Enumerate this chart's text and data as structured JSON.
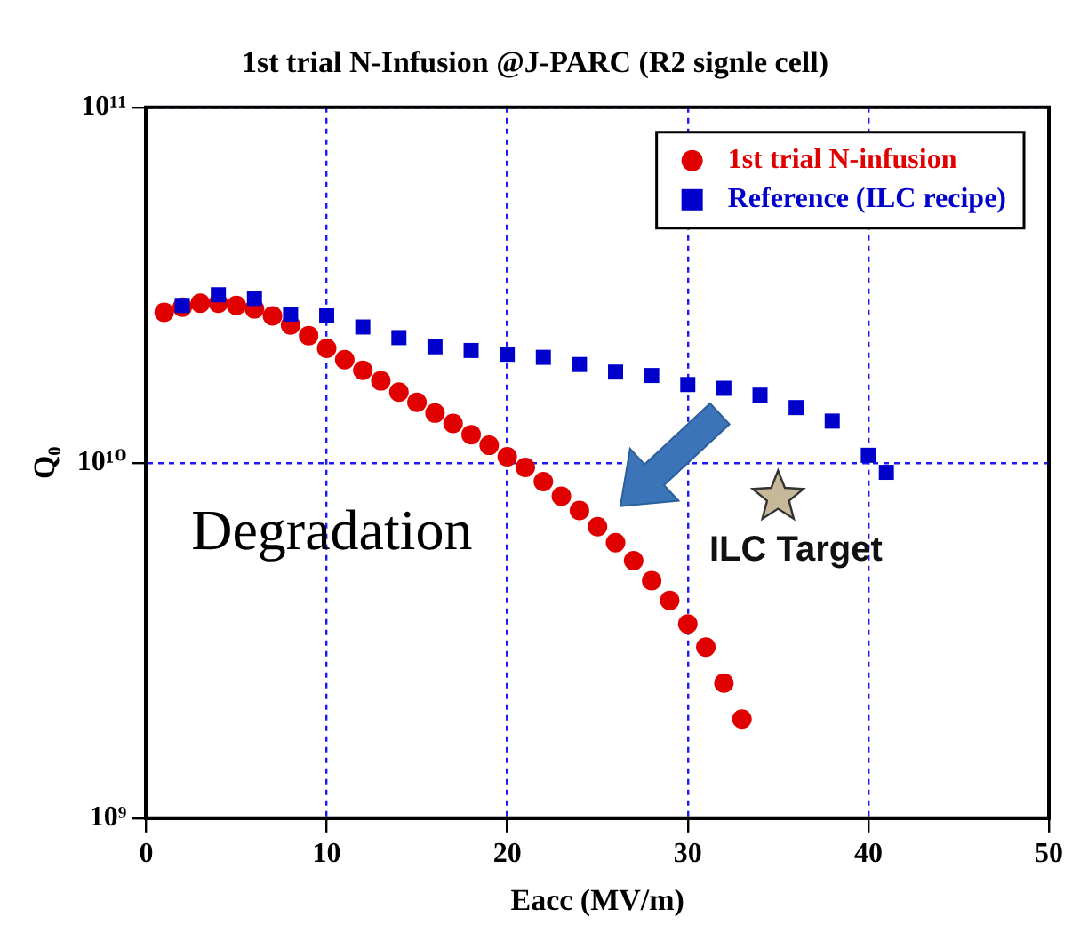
{
  "chart_data": {
    "type": "scatter",
    "title": "1st trial N-Infusion @J-PARC (R2 signle cell)",
    "xlabel": "Eacc (MV/m)",
    "ylabel": "Q₀",
    "log": "y",
    "xlim": [
      0,
      50
    ],
    "xticks": [
      0,
      10,
      20,
      30,
      40,
      50
    ],
    "ylim": [
      1000000000.0,
      100000000000.0
    ],
    "yticks": [
      {
        "value": 1000000000.0,
        "label": "10⁹"
      },
      {
        "value": 10000000000.0,
        "label": "10¹⁰"
      },
      {
        "value": 100000000000.0,
        "label": "10¹¹"
      }
    ],
    "grid": true,
    "legend": "top right",
    "series": [
      {
        "name": "1st trial N-infusion",
        "color": "#e00000",
        "marker": "circle",
        "x": [
          1,
          2,
          3,
          4,
          5,
          6,
          7,
          8,
          9,
          10,
          11,
          12,
          13,
          14,
          15,
          16,
          17,
          18,
          19,
          20,
          21,
          22,
          23,
          24,
          25,
          26,
          27,
          28,
          29,
          30,
          31,
          32,
          33
        ],
        "values": [
          26500000000.0,
          27400000000.0,
          28100000000.0,
          28100000000.0,
          27700000000.0,
          27100000000.0,
          25900000000.0,
          24400000000.0,
          22800000000.0,
          21000000000.0,
          19500000000.0,
          18200000000.0,
          17000000000.0,
          15800000000.0,
          14800000000.0,
          13800000000.0,
          12900000000.0,
          12000000000.0,
          11200000000.0,
          10400000000.0,
          9700000000.0,
          8850000000.0,
          8050000000.0,
          7340000000.0,
          6610000000.0,
          5960000000.0,
          5300000000.0,
          4660000000.0,
          4100000000.0,
          3520000000.0,
          3030000000.0,
          2400000000.0,
          1900000000.0
        ]
      },
      {
        "name": "Reference (ILC recipe)",
        "color": "#0000cc",
        "marker": "square",
        "x": [
          2,
          4,
          6,
          8,
          10,
          12,
          14,
          16,
          18,
          20,
          22,
          24,
          26,
          28,
          30,
          32,
          34,
          36,
          38,
          40,
          41
        ],
        "values": [
          27700000000.0,
          29700000000.0,
          29000000000.0,
          26200000000.0,
          25900000000.0,
          24100000000.0,
          22500000000.0,
          21200000000.0,
          20700000000.0,
          20200000000.0,
          19800000000.0,
          18900000000.0,
          18000000000.0,
          17600000000.0,
          16600000000.0,
          16200000000.0,
          15500000000.0,
          14300000000.0,
          13100000000.0,
          10500000000.0,
          9400000000.0
        ]
      }
    ],
    "annotations": [
      {
        "text": "ILC Target",
        "x": 35,
        "y": 8000000000.0
      },
      "Degradation"
    ]
  }
}
